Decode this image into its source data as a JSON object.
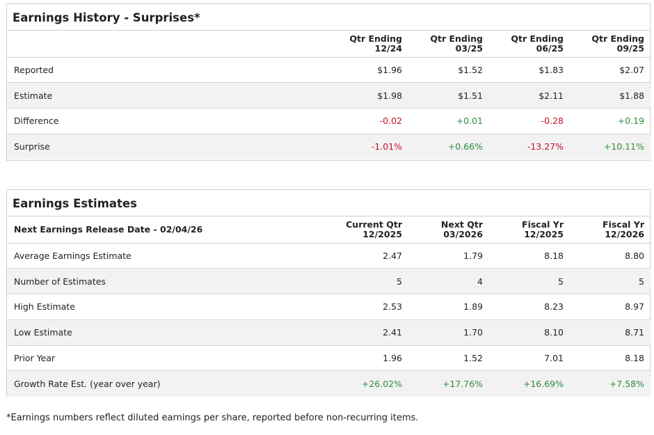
{
  "earnings_history": {
    "title": "Earnings History - Surprises*",
    "columns": [
      {
        "line1": "Qtr Ending",
        "line2": "12/24"
      },
      {
        "line1": "Qtr Ending",
        "line2": "03/25"
      },
      {
        "line1": "Qtr Ending",
        "line2": "06/25"
      },
      {
        "line1": "Qtr Ending",
        "line2": "09/25"
      }
    ],
    "rows": [
      {
        "label": "Reported",
        "values": [
          "$1.96",
          "$1.52",
          "$1.83",
          "$2.07"
        ]
      },
      {
        "label": "Estimate",
        "values": [
          "$1.98",
          "$1.51",
          "$2.11",
          "$1.88"
        ]
      },
      {
        "label": "Difference",
        "values": [
          "-0.02",
          "+0.01",
          "-0.28",
          "+0.19"
        ]
      },
      {
        "label": "Surprise",
        "values": [
          "-1.01%",
          "+0.66%",
          "-13.27%",
          "+10.11%"
        ]
      }
    ]
  },
  "earnings_estimates": {
    "title": "Earnings Estimates",
    "header_label": "Next Earnings Release Date - 02/04/26",
    "columns": [
      {
        "line1": "Current Qtr",
        "line2": "12/2025"
      },
      {
        "line1": "Next Qtr",
        "line2": "03/2026"
      },
      {
        "line1": "Fiscal Yr",
        "line2": "12/2025"
      },
      {
        "line1": "Fiscal Yr",
        "line2": "12/2026"
      }
    ],
    "rows": [
      {
        "label": "Average Earnings Estimate",
        "values": [
          "2.47",
          "1.79",
          "8.18",
          "8.80"
        ]
      },
      {
        "label": "Number of Estimates",
        "values": [
          "5",
          "4",
          "5",
          "5"
        ]
      },
      {
        "label": "High Estimate",
        "values": [
          "2.53",
          "1.89",
          "8.23",
          "8.97"
        ]
      },
      {
        "label": "Low Estimate",
        "values": [
          "2.41",
          "1.70",
          "8.10",
          "8.71"
        ]
      },
      {
        "label": "Prior Year",
        "values": [
          "1.96",
          "1.52",
          "7.01",
          "8.18"
        ]
      },
      {
        "label": "Growth Rate Est. (year over year)",
        "values": [
          "+26.02%",
          "+17.76%",
          "+16.69%",
          "+7.58%"
        ]
      }
    ]
  },
  "footnote": "*Earnings numbers reflect diluted earnings per share, reported before non-recurring items.",
  "colors": {
    "negative": "#c8102e",
    "positive": "#2e8b3a",
    "border": "#cfcfcf",
    "stripe": "#f2f2f2"
  }
}
